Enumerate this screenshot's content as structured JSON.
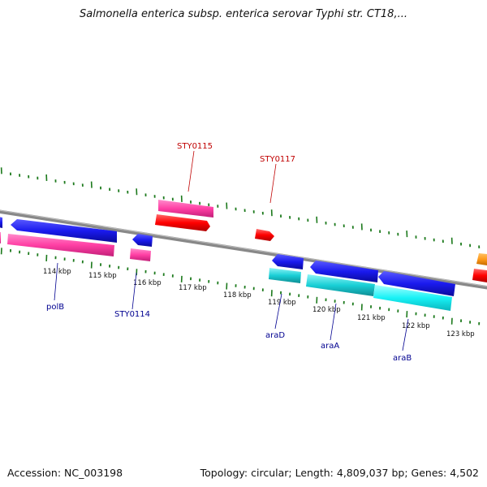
{
  "title": "Salmonella enterica subsp. enterica serovar Typhi str. CT18,...",
  "footer": {
    "accession": "Accession: NC_003198",
    "summary": "Topology: circular; Length: 4,809,037 bp; Genes: 4,502"
  },
  "scale_labels": [
    "114 kbp",
    "115 kbp",
    "116 kbp",
    "117 kbp",
    "118 kbp",
    "119 kbp",
    "120 kbp",
    "121 kbp",
    "122 kbp",
    "123 kbp"
  ],
  "gene_labels_top": [
    "STY0115",
    "STY0117"
  ],
  "gene_labels_bottom": [
    "polB",
    "STY0114",
    "araD",
    "araA",
    "araB"
  ],
  "colors": {
    "blue_gene": "#1a1aee",
    "pink_gene": "#ff3fa4",
    "red_gene": "#ff0000",
    "cyan_gene": "#19cfd6",
    "orange_gene": "#ff9a1a",
    "tick_green": "#1d7a1d",
    "backbone": "#888888",
    "label_red": "#c00000",
    "label_blue": "#000090"
  }
}
